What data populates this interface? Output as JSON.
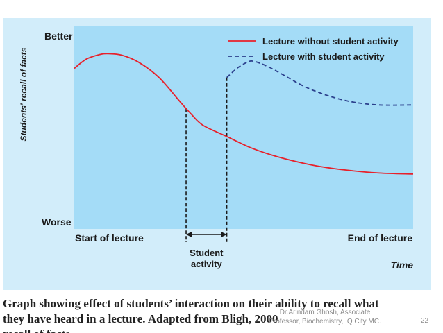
{
  "chart_data": {
    "type": "line",
    "title": "",
    "ylabel": "Students' recall of facts",
    "xlabel": "Time",
    "y_end_labels": {
      "top": "Better",
      "bottom": "Worse"
    },
    "x_end_labels": {
      "start": "Start of lecture",
      "end": "End of lecture"
    },
    "annotation": {
      "line1": "Student",
      "line2": "activity",
      "from": 0.33,
      "to": 0.45
    },
    "xlim": [
      0,
      1
    ],
    "ylim": [
      0,
      1
    ],
    "grid": false,
    "legend_placement": "top-right",
    "series": [
      {
        "name": "Lecture without student activity",
        "style": "solid",
        "color": "#e8202a",
        "points": [
          [
            0.0,
            0.79
          ],
          [
            0.035,
            0.835
          ],
          [
            0.075,
            0.858
          ],
          [
            0.1,
            0.862
          ],
          [
            0.14,
            0.855
          ],
          [
            0.19,
            0.82
          ],
          [
            0.25,
            0.745
          ],
          [
            0.31,
            0.63
          ],
          [
            0.345,
            0.565
          ],
          [
            0.38,
            0.51
          ],
          [
            0.45,
            0.455
          ],
          [
            0.52,
            0.4
          ],
          [
            0.6,
            0.355
          ],
          [
            0.7,
            0.315
          ],
          [
            0.8,
            0.29
          ],
          [
            0.9,
            0.275
          ],
          [
            1.0,
            0.27
          ]
        ]
      },
      {
        "name": "Lecture with student activity",
        "style": "dashed",
        "color": "#2b3f8c",
        "points": [
          [
            0.45,
            0.745
          ],
          [
            0.48,
            0.79
          ],
          [
            0.51,
            0.82
          ],
          [
            0.53,
            0.825
          ],
          [
            0.57,
            0.8
          ],
          [
            0.62,
            0.755
          ],
          [
            0.68,
            0.7
          ],
          [
            0.75,
            0.655
          ],
          [
            0.82,
            0.625
          ],
          [
            0.9,
            0.61
          ],
          [
            1.0,
            0.61
          ]
        ]
      }
    ],
    "markers": [
      {
        "x": 0.33,
        "style": "dashed"
      },
      {
        "x": 0.45,
        "style": "dashed"
      }
    ]
  },
  "colors": {
    "plot_background": "#a4dcf7",
    "figure_background": "#d2edfa",
    "axis_text": "#1b1b1b"
  },
  "caption": {
    "line1": "Graph showing effect of students’ interaction on their ability to recall what",
    "line2": "they have heard in a lecture. Adapted from Bligh, 2000",
    "line3": "recall of facts"
  },
  "footer": {
    "line1": "Dr.Arindam Ghosh, Associate",
    "line2": "Professor, Biochemistry, IQ City MC.",
    "slide_number": "22"
  }
}
